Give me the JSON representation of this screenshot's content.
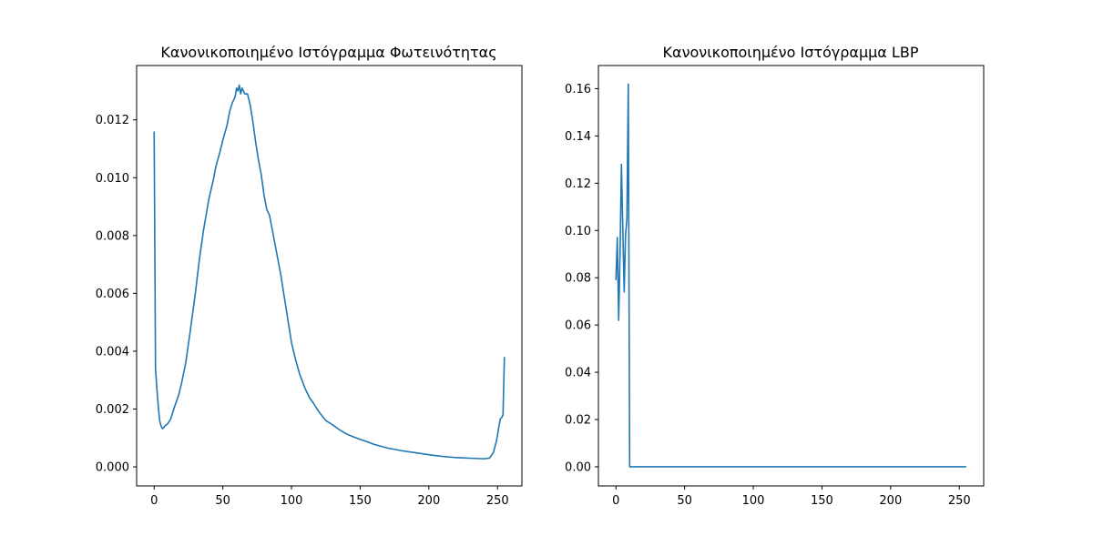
{
  "chart_data": [
    {
      "type": "line",
      "title": "Κανονικοποιημένο Ιστόγραμμα Φωτεινότητας",
      "xlabel": "",
      "ylabel": "",
      "xlim": [
        -12.75,
        267.75
      ],
      "ylim": [
        -0.00066,
        0.01388
      ],
      "xticks": [
        0,
        50,
        100,
        150,
        200,
        250
      ],
      "yticks": [
        0.0,
        0.002,
        0.004,
        0.006,
        0.008,
        0.01,
        0.012
      ],
      "ytick_labels": [
        "0.000",
        "0.002",
        "0.004",
        "0.006",
        "0.008",
        "0.010",
        "0.012"
      ],
      "grid": false,
      "color": "#1f77b4",
      "series": [
        {
          "x": [
            0,
            1,
            2,
            3,
            4,
            5,
            6,
            7,
            8,
            10,
            12,
            15,
            18,
            20,
            23,
            26,
            30,
            33,
            36,
            40,
            43,
            45,
            48,
            50,
            53,
            55,
            57,
            58,
            59,
            60,
            61,
            62,
            63,
            64,
            65,
            66,
            67,
            68,
            70,
            72,
            74,
            76,
            78,
            80,
            82,
            84,
            86,
            88,
            90,
            92,
            95,
            98,
            100,
            103,
            106,
            110,
            113,
            116,
            120,
            125,
            130,
            135,
            140,
            145,
            150,
            155,
            160,
            170,
            180,
            190,
            200,
            210,
            220,
            230,
            240,
            244,
            245,
            247,
            249,
            250,
            251,
            252,
            253,
            254,
            255
          ],
          "y": [
            0.0116,
            0.0034,
            0.0027,
            0.0021,
            0.0016,
            0.00142,
            0.00132,
            0.00136,
            0.00142,
            0.0015,
            0.00165,
            0.0021,
            0.0025,
            0.0029,
            0.0036,
            0.0046,
            0.006,
            0.0072,
            0.0082,
            0.0093,
            0.0099,
            0.0104,
            0.0109,
            0.0113,
            0.0118,
            0.0123,
            0.0126,
            0.0127,
            0.0128,
            0.0131,
            0.013,
            0.0132,
            0.0129,
            0.0131,
            0.013,
            0.0129,
            0.0129,
            0.0129,
            0.0125,
            0.0119,
            0.0112,
            0.0106,
            0.0101,
            0.0094,
            0.0089,
            0.0087,
            0.0082,
            0.0077,
            0.0072,
            0.0067,
            0.0058,
            0.0049,
            0.0043,
            0.0037,
            0.0032,
            0.0027,
            0.0024,
            0.0022,
            0.0019,
            0.0016,
            0.00145,
            0.00128,
            0.00114,
            0.00104,
            0.00095,
            0.00087,
            0.00078,
            0.00065,
            0.00056,
            0.00049,
            0.00042,
            0.00036,
            0.00032,
            0.0003,
            0.00028,
            0.0003,
            0.00036,
            0.0005,
            0.00085,
            0.0011,
            0.0014,
            0.00165,
            0.0017,
            0.0018,
            0.0038
          ]
        }
      ]
    },
    {
      "type": "line",
      "title": "Κανονικοποιημένο Ιστόγραμμα LBP",
      "xlabel": "",
      "ylabel": "",
      "xlim": [
        -12.75,
        267.75
      ],
      "ylim": [
        -0.0081,
        0.1698
      ],
      "xticks": [
        0,
        50,
        100,
        150,
        200,
        250
      ],
      "yticks": [
        0.0,
        0.02,
        0.04,
        0.06,
        0.08,
        0.1,
        0.12,
        0.14,
        0.16
      ],
      "ytick_labels": [
        "0.00",
        "0.02",
        "0.04",
        "0.06",
        "0.08",
        "0.10",
        "0.12",
        "0.14",
        "0.16"
      ],
      "grid": false,
      "color": "#1f77b4",
      "series": [
        {
          "x": [
            0,
            1,
            2,
            3,
            4,
            5,
            6,
            7,
            8,
            9,
            10,
            11,
            50,
            100,
            150,
            200,
            255
          ],
          "y": [
            0.079,
            0.097,
            0.062,
            0.09,
            0.128,
            0.101,
            0.074,
            0.098,
            0.105,
            0.162,
            0,
            0,
            0,
            0,
            0,
            0,
            0
          ]
        }
      ]
    }
  ]
}
